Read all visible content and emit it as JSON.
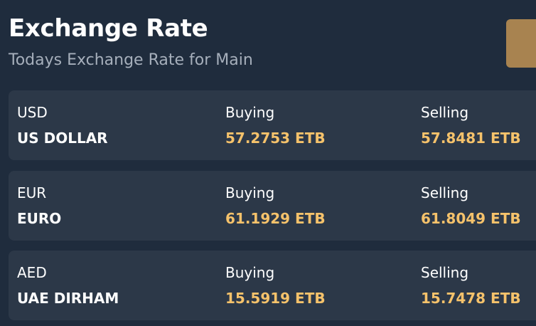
{
  "header": {
    "title": "Exchange Rate",
    "subtitle": "Todays Exchange Rate for Main"
  },
  "rates": [
    {
      "code": "USD",
      "name": "US DOLLAR",
      "buying_label": "Buying",
      "buying_value": "57.2753 ETB",
      "selling_label": "Selling",
      "selling_value": "57.8481 ETB"
    },
    {
      "code": "EUR",
      "name": "EURO",
      "buying_label": "Buying",
      "buying_value": "61.1929 ETB",
      "selling_label": "Selling",
      "selling_value": "61.8049 ETB"
    },
    {
      "code": "AED",
      "name": "UAE DIRHAM",
      "buying_label": "Buying",
      "buying_value": "15.5919 ETB",
      "selling_label": "Selling",
      "selling_value": "15.7478 ETB"
    }
  ],
  "colors": {
    "background": "#1f2c3d",
    "card": "#2c3848",
    "accent": "#a88350",
    "rate_value": "#f5c26b",
    "subtitle": "#a6afbb"
  }
}
